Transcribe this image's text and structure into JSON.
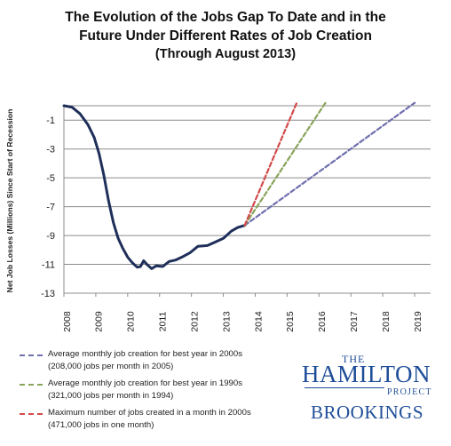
{
  "chart_data": {
    "type": "line",
    "title": "The Evolution of the Jobs Gap To Date and in the",
    "title_line2": "Future Under Different Rates of Job Creation",
    "subtitle": "(Through August 2013)",
    "ylabel": "Net Job Losses (Millions) Since Start of Recession",
    "xlabel": "",
    "xlim": [
      2008,
      2019.5
    ],
    "ylim": [
      -13,
      0
    ],
    "x_ticks": [
      "2008",
      "2009",
      "2010",
      "2011",
      "2012",
      "2013",
      "2014",
      "2015",
      "2016",
      "2017",
      "2018",
      "2019"
    ],
    "y_ticks": [
      "-1",
      "-3",
      "-5",
      "-7",
      "-9",
      "-11",
      "-13"
    ],
    "grid": "horizontal",
    "series": [
      {
        "name": "",
        "style": "solid",
        "color": "#1f2f5a",
        "points": [
          [
            2008.0,
            0.0
          ],
          [
            2008.25,
            -0.1
          ],
          [
            2008.5,
            -0.55
          ],
          [
            2008.75,
            -1.3
          ],
          [
            2008.95,
            -2.2
          ],
          [
            2009.1,
            -3.3
          ],
          [
            2009.25,
            -4.8
          ],
          [
            2009.4,
            -6.6
          ],
          [
            2009.55,
            -8.1
          ],
          [
            2009.7,
            -9.2
          ],
          [
            2009.85,
            -9.9
          ],
          [
            2010.0,
            -10.5
          ],
          [
            2010.15,
            -10.9
          ],
          [
            2010.3,
            -11.2
          ],
          [
            2010.4,
            -11.15
          ],
          [
            2010.5,
            -10.75
          ],
          [
            2010.6,
            -11.0
          ],
          [
            2010.75,
            -11.3
          ],
          [
            2010.9,
            -11.1
          ],
          [
            2011.1,
            -11.15
          ],
          [
            2011.3,
            -10.8
          ],
          [
            2011.5,
            -10.7
          ],
          [
            2011.7,
            -10.5
          ],
          [
            2011.95,
            -10.2
          ],
          [
            2012.2,
            -9.75
          ],
          [
            2012.5,
            -9.7
          ],
          [
            2012.75,
            -9.45
          ],
          [
            2013.0,
            -9.2
          ],
          [
            2013.25,
            -8.7
          ],
          [
            2013.45,
            -8.45
          ],
          [
            2013.67,
            -8.3
          ]
        ]
      },
      {
        "name": "Average monthly job creation for best year in 2000s",
        "style": "dashed",
        "color": "#6f6fae",
        "points": [
          [
            2013.67,
            -8.3
          ],
          [
            2019.0,
            0.2
          ]
        ]
      },
      {
        "name": "Average monthly job creation for best year in 1990s",
        "style": "dashed",
        "color": "#8aa35a",
        "points": [
          [
            2013.67,
            -8.3
          ],
          [
            2016.2,
            0.2
          ]
        ]
      },
      {
        "name": "Maximum number of jobs created in a month in 2000s",
        "style": "dashed",
        "color": "#d24a4a",
        "points": [
          [
            2013.67,
            -8.3
          ],
          [
            2015.3,
            0.2
          ]
        ]
      }
    ]
  },
  "legend": [
    {
      "line1": "Average monthly job creation for best year in 2000s",
      "line2": "(208,000 jobs per month in 2005)",
      "color": "#6f6fae"
    },
    {
      "line1": "Average monthly job creation for best year in 1990s",
      "line2": "(321,000 jobs per month in 1994)",
      "color": "#8aa35a"
    },
    {
      "line1": "Maximum number of jobs created in a month in 2000s",
      "line2": "(471,000 jobs in one month)",
      "color": "#d24a4a"
    }
  ],
  "logo": {
    "the": "THE",
    "hamilton": "HAMILTON",
    "project": "PROJECT",
    "brookings": "BROOKINGS"
  }
}
